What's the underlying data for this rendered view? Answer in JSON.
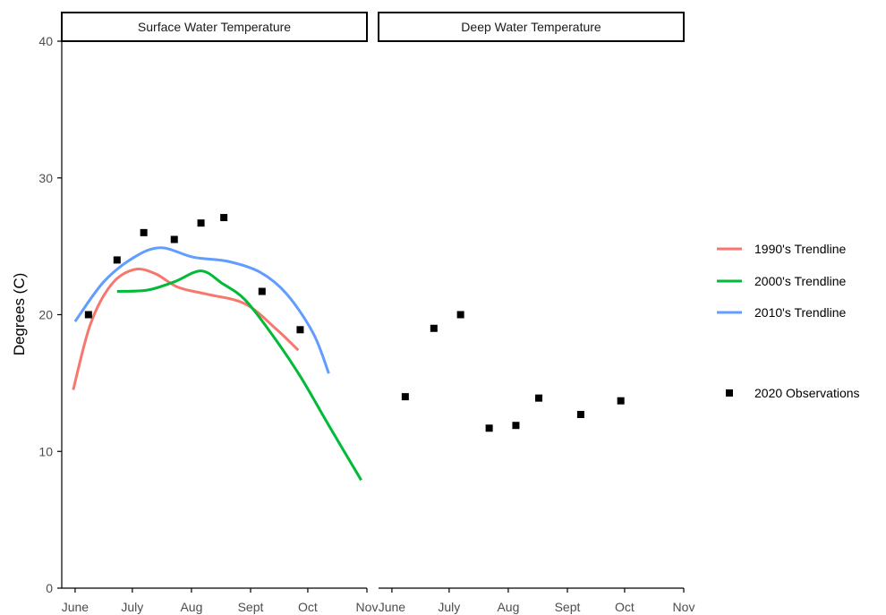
{
  "chart_data": {
    "type": "line",
    "ylabel": "Degrees (C)",
    "ylim": [
      0,
      40
    ],
    "yticks": [
      0,
      10,
      20,
      30,
      40
    ],
    "xlim": [
      "2020-05-25",
      "2020-11-01"
    ],
    "xticks": [
      {
        "date": "2020-06-01",
        "label": "June"
      },
      {
        "date": "2020-07-01",
        "label": "July"
      },
      {
        "date": "2020-08-01",
        "label": "Aug"
      },
      {
        "date": "2020-09-01",
        "label": "Sept"
      },
      {
        "date": "2020-10-01",
        "label": "Oct"
      },
      {
        "date": "2020-11-01",
        "label": "Nov"
      }
    ],
    "grid": false,
    "legend_position": "right",
    "panels": [
      {
        "title": "Surface Water Temperature",
        "series": [
          {
            "name": "1990's Trendline",
            "color": "#F8766D",
            "kind": "line",
            "points": [
              [
                "2020-05-31",
                14.5
              ],
              [
                "2020-06-09",
                19.3
              ],
              [
                "2020-06-20",
                22.2
              ],
              [
                "2020-07-02",
                23.3
              ],
              [
                "2020-07-13",
                23.0
              ],
              [
                "2020-07-25",
                22.0
              ],
              [
                "2020-08-09",
                21.5
              ],
              [
                "2020-08-29",
                20.8
              ],
              [
                "2020-09-14",
                19.0
              ],
              [
                "2020-09-26",
                17.4
              ]
            ]
          },
          {
            "name": "2000's Trendline",
            "color": "#00BA38",
            "kind": "line",
            "points": [
              [
                "2020-06-23",
                21.7
              ],
              [
                "2020-07-09",
                21.8
              ],
              [
                "2020-07-23",
                22.4
              ],
              [
                "2020-08-06",
                23.2
              ],
              [
                "2020-08-17",
                22.3
              ],
              [
                "2020-08-29",
                21.1
              ],
              [
                "2020-09-12",
                18.6
              ],
              [
                "2020-09-27",
                15.5
              ],
              [
                "2020-10-12",
                11.9
              ],
              [
                "2020-10-29",
                7.9
              ]
            ]
          },
          {
            "name": "2010's Trendline",
            "color": "#619CFF",
            "kind": "line",
            "points": [
              [
                "2020-06-01",
                19.5
              ],
              [
                "2020-06-16",
                22.4
              ],
              [
                "2020-07-02",
                24.2
              ],
              [
                "2020-07-16",
                24.9
              ],
              [
                "2020-08-02",
                24.2
              ],
              [
                "2020-08-20",
                23.9
              ],
              [
                "2020-09-06",
                23.1
              ],
              [
                "2020-09-20",
                21.5
              ],
              [
                "2020-10-04",
                18.6
              ],
              [
                "2020-10-12",
                15.7
              ]
            ]
          },
          {
            "name": "2020 Observations",
            "color": "#000000",
            "kind": "point",
            "points": [
              [
                "2020-06-08",
                20.0
              ],
              [
                "2020-06-23",
                24.0
              ],
              [
                "2020-07-07",
                26.0
              ],
              [
                "2020-07-23",
                25.5
              ],
              [
                "2020-08-06",
                26.7
              ],
              [
                "2020-08-18",
                27.1
              ],
              [
                "2020-09-07",
                21.7
              ],
              [
                "2020-09-27",
                18.9
              ]
            ]
          }
        ]
      },
      {
        "title": "Deep Water Temperature",
        "series": [
          {
            "name": "2020 Observations",
            "color": "#000000",
            "kind": "point",
            "points": [
              [
                "2020-06-08",
                14.0
              ],
              [
                "2020-06-23",
                19.0
              ],
              [
                "2020-07-07",
                20.0
              ],
              [
                "2020-07-22",
                11.7
              ],
              [
                "2020-08-05",
                11.9
              ],
              [
                "2020-08-17",
                13.9
              ],
              [
                "2020-09-08",
                12.7
              ],
              [
                "2020-09-29",
                13.7
              ]
            ]
          }
        ]
      }
    ],
    "legend": [
      {
        "label": "1990's Trendline",
        "color": "#F8766D",
        "kind": "line"
      },
      {
        "label": "2000's Trendline",
        "color": "#00BA38",
        "kind": "line"
      },
      {
        "label": "2010's Trendline",
        "color": "#619CFF",
        "kind": "line"
      },
      {
        "label": "2020 Observations",
        "color": "#000000",
        "kind": "point"
      }
    ]
  }
}
